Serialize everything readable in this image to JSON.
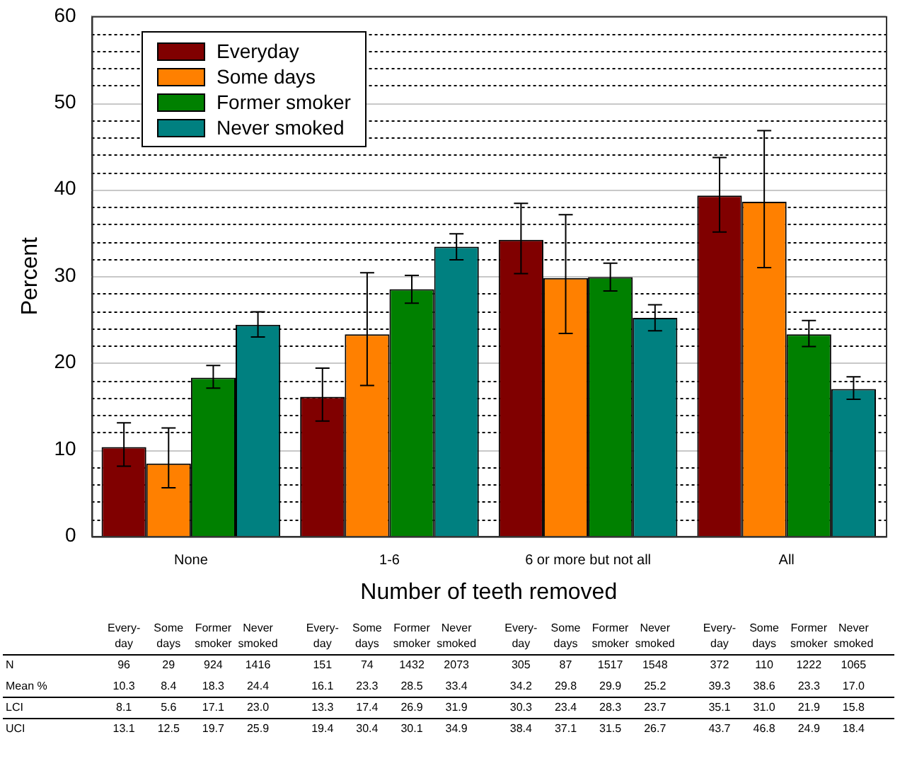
{
  "chart_data": {
    "type": "bar",
    "xlabel": "Number of teeth removed",
    "ylabel": "Percent",
    "categories": [
      "None",
      "1-6",
      "6 or more but not all",
      "All"
    ],
    "series": [
      {
        "name": "Everyday",
        "color": "#800000",
        "values": [
          10.3,
          16.1,
          34.2,
          39.3
        ],
        "errors": [
          [
            8.1,
            13.1
          ],
          [
            13.3,
            19.4
          ],
          [
            30.3,
            38.4
          ],
          [
            35.1,
            43.7
          ]
        ]
      },
      {
        "name": "Some days",
        "color": "#ff8000",
        "values": [
          8.4,
          23.3,
          29.8,
          38.6
        ],
        "errors": [
          [
            5.6,
            12.5
          ],
          [
            17.4,
            30.4
          ],
          [
            23.4,
            37.1
          ],
          [
            31.0,
            46.8
          ]
        ]
      },
      {
        "name": "Former smoker",
        "color": "#008000",
        "values": [
          18.3,
          28.5,
          29.9,
          23.3
        ],
        "errors": [
          [
            17.1,
            19.7
          ],
          [
            26.9,
            30.1
          ],
          [
            28.3,
            31.5
          ],
          [
            21.9,
            24.9
          ]
        ]
      },
      {
        "name": "Never smoked",
        "color": "#008080",
        "values": [
          24.4,
          33.4,
          25.2,
          17.0
        ],
        "errors": [
          [
            23.0,
            25.9
          ],
          [
            31.9,
            34.9
          ],
          [
            23.7,
            26.7
          ],
          [
            15.8,
            18.4
          ]
        ]
      }
    ],
    "ylim": [
      0,
      60
    ],
    "yticks": [
      0,
      {
        "value": 2,
        "label": null
      },
      {
        "value": 4,
        "label": null
      },
      {
        "value": 6,
        "label": null
      },
      {
        "value": 8,
        "label": null
      },
      10,
      {
        "value": 12,
        "label": null
      },
      {
        "value": 14,
        "label": null
      },
      {
        "value": 16,
        "label": null
      },
      {
        "value": 18,
        "label": null
      },
      20,
      {
        "value": 22,
        "label": null
      },
      {
        "value": 24,
        "label": null
      },
      {
        "value": 26,
        "label": null
      },
      {
        "value": 28,
        "label": null
      },
      30,
      {
        "value": 32,
        "label": null
      },
      {
        "value": 34,
        "label": null
      },
      {
        "value": 36,
        "label": null
      },
      {
        "value": 38,
        "label": null
      },
      40,
      {
        "value": 42,
        "label": null
      },
      {
        "value": 44,
        "label": null
      },
      {
        "value": 46,
        "label": null
      },
      {
        "value": 48,
        "label": null
      },
      50,
      {
        "value": 52,
        "label": null
      },
      {
        "value": 54,
        "label": null
      },
      {
        "value": 56,
        "label": null
      },
      {
        "value": 58,
        "label": null
      },
      60
    ],
    "grid": "y",
    "legend": "top left",
    "annotations": [
      "Every-day",
      "Some days",
      "Former smoker",
      "Never smoked",
      "N",
      "Mean %",
      "LCI",
      "UCI",
      "96",
      "29",
      "924",
      "1416",
      "151",
      "74",
      "1432",
      "2073",
      "305",
      "87",
      "1517",
      "1548",
      "372",
      "110",
      "1222",
      "1065",
      "10.3",
      "8.4",
      "18.3",
      "24.4",
      "16.1",
      "23.3",
      "28.5",
      "33.4",
      "34.2",
      "29.8",
      "29.9",
      "25.2",
      "39.3",
      "38.6",
      "23.3",
      "17.0",
      "8.1",
      "5.6",
      "17.1",
      "23.0",
      "13.3",
      "17.4",
      "26.9",
      "31.9",
      "30.3",
      "23.4",
      "28.3",
      "23.7",
      "35.1",
      "31.0",
      "21.9",
      "15.8",
      "13.1",
      "12.5",
      "19.7",
      "25.9",
      "19.4",
      "30.4",
      "30.1",
      "34.9",
      "38.4",
      "37.1",
      "31.5",
      "26.7",
      "43.7",
      "46.8",
      "24.9",
      "18.4"
    ]
  }
}
